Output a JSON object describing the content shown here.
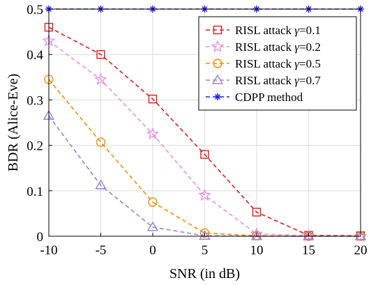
{
  "chart_data": {
    "type": "line",
    "title": "",
    "xlabel": "SNR (in dB)",
    "ylabel": "BDR (Alice-Eve)",
    "xlim": [
      -10,
      20
    ],
    "ylim": [
      0,
      0.5
    ],
    "grid": true,
    "legend_position": "top-right",
    "x": [
      -10,
      -5,
      0,
      5,
      10,
      15,
      20
    ],
    "x_tick_labels": [
      "-10",
      "-5",
      "0",
      "5",
      "10",
      "15",
      "20"
    ],
    "y_ticks": [
      0,
      0.1,
      0.2,
      0.3,
      0.4,
      0.5
    ],
    "y_tick_labels": [
      "0",
      "0.1",
      "0.2",
      "0.3",
      "0.4",
      "0.5"
    ],
    "series": [
      {
        "name": "RISL attack γ=0.1",
        "legend_prefix": "RISL attack ",
        "legend_symbol": "γ",
        "legend_suffix": "=0.1",
        "color": "#e41a1c",
        "marker": "square",
        "values": [
          0.46,
          0.4,
          0.302,
          0.18,
          0.053,
          0.002,
          0.001
        ]
      },
      {
        "name": "RISL attack γ=0.2",
        "legend_prefix": "RISL attack ",
        "legend_symbol": "γ",
        "legend_suffix": "=0.2",
        "color": "#e78ee3",
        "marker": "star",
        "values": [
          0.43,
          0.345,
          0.225,
          0.09,
          0.005,
          0.001,
          0.0
        ]
      },
      {
        "name": "RISL attack γ=0.5",
        "legend_prefix": "RISL attack ",
        "legend_symbol": "γ",
        "legend_suffix": "=0.5",
        "color": "#f08c00",
        "marker": "circle",
        "values": [
          0.345,
          0.207,
          0.075,
          0.007,
          0.001,
          0.0,
          0.0
        ]
      },
      {
        "name": "RISL attack γ=0.7",
        "legend_prefix": "RISL attack ",
        "legend_symbol": "γ",
        "legend_suffix": "=0.7",
        "color": "#9b7fd6",
        "marker": "triangle",
        "values": [
          0.265,
          0.112,
          0.02,
          0.001,
          0.0,
          0.0,
          0.0
        ]
      },
      {
        "name": "CDPP method",
        "legend_prefix": "CDPP method",
        "legend_symbol": "",
        "legend_suffix": "",
        "color": "#1f1fe0",
        "marker": "asterisk",
        "values": [
          0.5,
          0.5,
          0.5,
          0.5,
          0.5,
          0.5,
          0.5
        ]
      }
    ]
  }
}
